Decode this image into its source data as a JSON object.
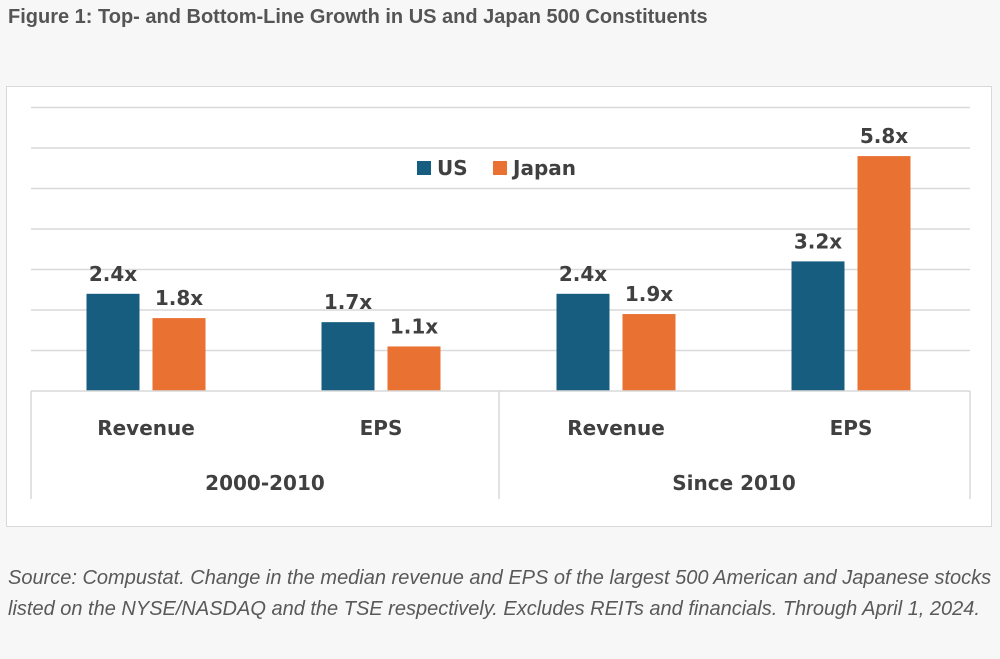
{
  "figure_title": "Figure 1: Top- and Bottom-Line Growth in US and Japan 500 Constituents",
  "source_note": "Source: Compustat. Change in the median revenue and EPS of the largest 500 American and Japanese stocks listed on the NYSE/NASDAQ and the TSE respectively. Excludes REITs and financials. Through April 1, 2024.",
  "chart_data": {
    "type": "bar",
    "title": "",
    "xlabel": "",
    "ylabel": "",
    "ylim": [
      0,
      7
    ],
    "grid": true,
    "legend_placement": "top-center",
    "groups": [
      {
        "label": "2000-2010",
        "categories": [
          "Revenue",
          "EPS"
        ]
      },
      {
        "label": "Since 2010",
        "categories": [
          "Revenue",
          "EPS"
        ]
      }
    ],
    "categories": [
      "Revenue",
      "EPS",
      "Revenue",
      "EPS"
    ],
    "series": [
      {
        "name": "US",
        "color": "#175d7f",
        "values": [
          2.4,
          1.7,
          2.4,
          3.2
        ],
        "labels": [
          "2.4x",
          "1.7x",
          "2.4x",
          "3.2x"
        ]
      },
      {
        "name": "Japan",
        "color": "#e97132",
        "values": [
          1.8,
          1.1,
          1.9,
          5.8
        ],
        "labels": [
          "1.8x",
          "1.1x",
          "1.9x",
          "5.8x"
        ]
      }
    ]
  }
}
